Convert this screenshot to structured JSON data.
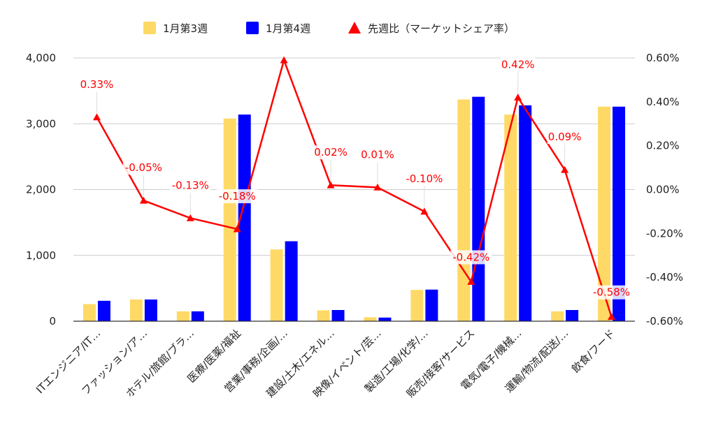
{
  "chart_data": {
    "type": "bar",
    "categories": [
      "ITエンジニア/IT…",
      "ファッション/ア…",
      "ホテル/旅館/ブラ…",
      "医療/医薬/福祉",
      "営業/事務/企画/…",
      "建設/土木/エネル…",
      "映像/イベント/芸…",
      "製造/工場/化学/…",
      "販売/接客/サービス",
      "電気/電子/機械…",
      "運輸/物流/配送/…",
      "飲食/フード"
    ],
    "series": [
      {
        "name": "1月第3週",
        "kind": "bar",
        "axis": "left",
        "color": "#ffd966",
        "values": [
          260,
          330,
          150,
          3080,
          1090,
          165,
          60,
          475,
          3370,
          3140,
          150,
          3260
        ]
      },
      {
        "name": "1月第4週",
        "kind": "bar",
        "axis": "left",
        "color": "#0000ff",
        "values": [
          310,
          330,
          150,
          3140,
          1215,
          170,
          55,
          480,
          3410,
          3280,
          170,
          3260
        ]
      },
      {
        "name": "先週比（マーケットシェア率）",
        "kind": "line",
        "axis": "right",
        "color": "#ff0000",
        "values": [
          0.33,
          -0.05,
          -0.13,
          -0.18,
          0.59,
          0.02,
          0.01,
          -0.1,
          -0.42,
          0.42,
          0.09,
          -0.58
        ],
        "labels": [
          "0.33%",
          "-0.05%",
          "-0.13%",
          "-0.18%",
          "",
          "0.02%",
          "0.01%",
          "-0.10%",
          "-0.42%",
          "0.42%",
          "0.09%",
          "-0.58%"
        ]
      }
    ],
    "y_left": {
      "ylim": [
        0,
        4000
      ],
      "ticks": [
        "0",
        "1,000",
        "2,000",
        "3,000",
        "4,000"
      ],
      "tick_values": [
        0,
        1000,
        2000,
        3000,
        4000
      ]
    },
    "y_right": {
      "ylim": [
        -0.6,
        0.6
      ],
      "ticks": [
        "-0.60%",
        "-0.40%",
        "-0.20%",
        "0.00%",
        "0.20%",
        "0.40%",
        "0.60%"
      ],
      "tick_values": [
        -0.6,
        -0.4,
        -0.2,
        0.0,
        0.2,
        0.4,
        0.6
      ]
    },
    "legend_position": "top-center",
    "grid": true
  }
}
